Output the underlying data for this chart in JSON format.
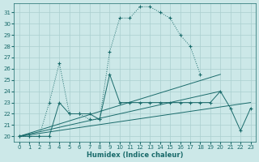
{
  "xlabel": "Humidex (Indice chaleur)",
  "background_color": "#cce8e8",
  "grid_color": "#aacfcf",
  "line_color": "#1a6b6b",
  "xlim": [
    -0.5,
    23.5
  ],
  "ylim": [
    19.5,
    31.8
  ],
  "xticks": [
    0,
    1,
    2,
    3,
    4,
    5,
    6,
    7,
    8,
    9,
    10,
    11,
    12,
    13,
    14,
    15,
    16,
    17,
    18,
    19,
    20,
    21,
    22,
    23
  ],
  "yticks": [
    20,
    21,
    22,
    23,
    24,
    25,
    26,
    27,
    28,
    29,
    30,
    31
  ],
  "series1_x": [
    0,
    1,
    2,
    3,
    4,
    5,
    6,
    7,
    8,
    9,
    10,
    11,
    12,
    13,
    14,
    15,
    16,
    17,
    18,
    19,
    20,
    21,
    22,
    23
  ],
  "series1_y": [
    20,
    20,
    20,
    23,
    26.5,
    22,
    22,
    21.5,
    21.5,
    27.5,
    30.5,
    30.5,
    31.5,
    31.5,
    31,
    30.5,
    29,
    28,
    25.5,
    null,
    null,
    null,
    null,
    null
  ],
  "series2_x": [
    0,
    1,
    3,
    4,
    5,
    6,
    7,
    8,
    9,
    10,
    11,
    12,
    13,
    14,
    15,
    16,
    17,
    18,
    19,
    20,
    21,
    22,
    23
  ],
  "series2_y": [
    20,
    20,
    20,
    23,
    22,
    22,
    22,
    21.5,
    25.5,
    23,
    23,
    23,
    23,
    23,
    23,
    23,
    23,
    23,
    23,
    24,
    22.5,
    20.5,
    22.5
  ],
  "series3_x": [
    0,
    20
  ],
  "series3_y": [
    20,
    25.5
  ],
  "series4_x": [
    0,
    20
  ],
  "series4_y": [
    20,
    24
  ],
  "series5_x": [
    0,
    23
  ],
  "series5_y": [
    20,
    23
  ]
}
